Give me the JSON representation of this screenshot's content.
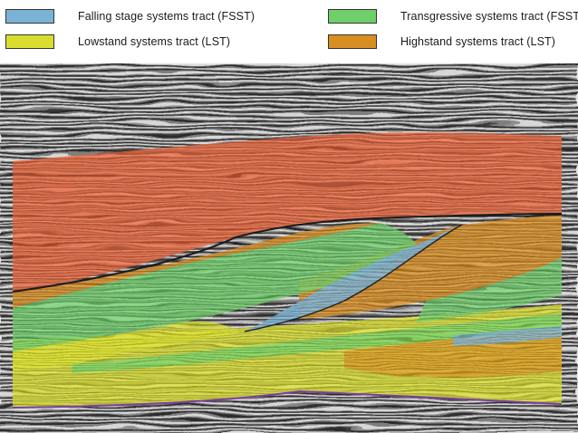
{
  "legend": {
    "items": [
      {
        "label": "Falling stage systems tract (FSST)",
        "color": "#7ab3d6"
      },
      {
        "label": "Lowstand systems tract (LST)",
        "color": "#d9de2e"
      },
      {
        "label": "Transgressive systems tract (FSST)",
        "color": "#6fcf6a"
      },
      {
        "label": "Highstand systems tract (LST)",
        "color": "#d98e21"
      }
    ]
  },
  "section": {
    "upper_unit_color": "#e8643a",
    "seismic_background": "grayscale-seismic-reflections"
  }
}
